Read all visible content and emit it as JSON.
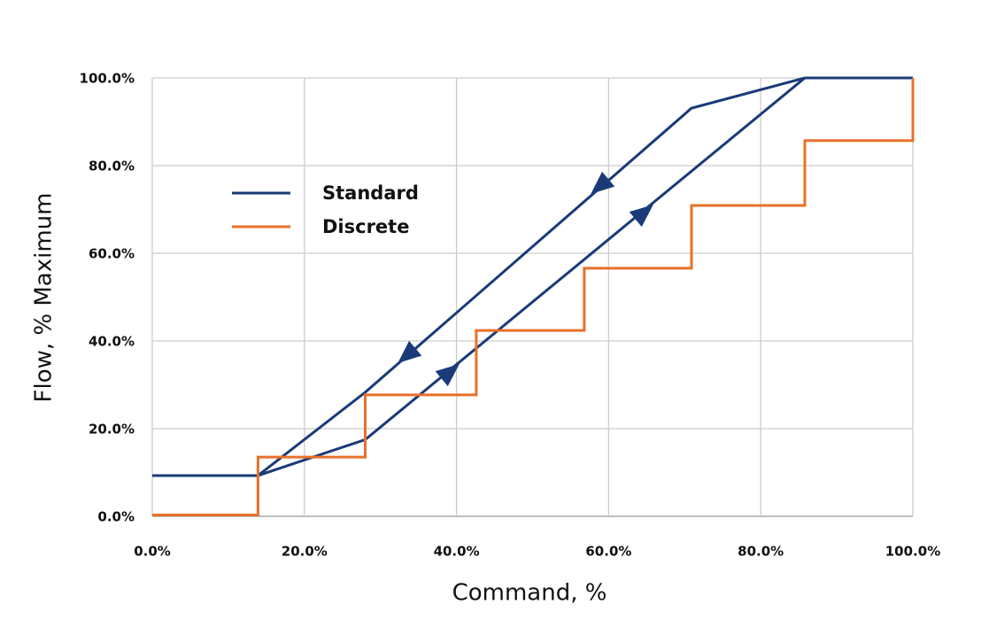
{
  "chart_data": {
    "type": "line",
    "xlabel": "Command, %",
    "ylabel": "Flow, % Maximum",
    "xlim": [
      0,
      100
    ],
    "ylim": [
      0,
      100
    ],
    "xticks": [
      {
        "value": 0,
        "label": "0.0%"
      },
      {
        "value": 20,
        "label": "20.0%"
      },
      {
        "value": 40,
        "label": "40.0%"
      },
      {
        "value": 60,
        "label": "60.0%"
      },
      {
        "value": 80,
        "label": "80.0%"
      },
      {
        "value": 100,
        "label": "100.0%"
      }
    ],
    "yticks": [
      {
        "value": 0,
        "label": "0.0%"
      },
      {
        "value": 20,
        "label": "20.0%"
      },
      {
        "value": 40,
        "label": "40.0%"
      },
      {
        "value": 60,
        "label": "60.0%"
      },
      {
        "value": 80,
        "label": "80.0%"
      },
      {
        "value": 100,
        "label": "100.0%"
      }
    ],
    "grid": true,
    "legend": "upper left",
    "series": [
      {
        "name": "Standard",
        "color": "#1a3a78",
        "x": [
          0,
          13.9,
          28,
          85.8,
          100,
          85.8,
          70.9,
          28,
          13.9
        ],
        "values": [
          9.3,
          9.3,
          17.5,
          100,
          100,
          100,
          93.1,
          28.3,
          9.3
        ]
      },
      {
        "name": "Discrete",
        "color": "#e8702a",
        "x": [
          0,
          13.9,
          13.9,
          28,
          28,
          42.6,
          42.6,
          56.8,
          56.8,
          70.9,
          70.9,
          85.8,
          85.8,
          100,
          100
        ],
        "values": [
          0.3,
          0.3,
          13.5,
          13.5,
          27.7,
          27.7,
          42.4,
          42.4,
          56.6,
          56.6,
          70.9,
          70.9,
          85.7,
          85.7,
          100
        ]
      }
    ]
  }
}
